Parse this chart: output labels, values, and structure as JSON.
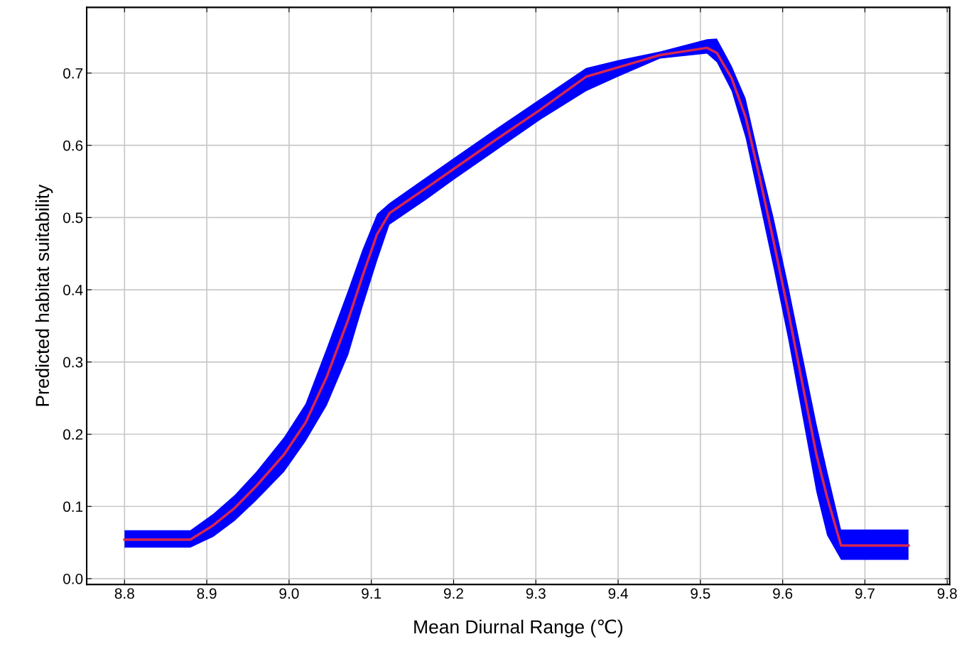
{
  "chart_data": {
    "type": "line",
    "xlabel": "Mean Diurnal Range (℃)",
    "ylabel": "Predicted habitat suitability",
    "xlim": [
      8.754,
      9.803
    ],
    "ylim": [
      -0.008,
      0.791
    ],
    "xticks": [
      8.8,
      8.9,
      {
        "value": 9.0,
        "label": "9.0"
      },
      9.1,
      9.2,
      9.3,
      9.4,
      9.5,
      9.6,
      9.7,
      9.8
    ],
    "yticks": [
      {
        "value": 0.0,
        "label": "0.0"
      },
      0.1,
      0.2,
      0.3,
      0.4,
      0.5,
      0.6,
      0.7
    ],
    "grid": true,
    "marker": "none",
    "line_style": "solid",
    "series": [
      {
        "color": "#0000ff",
        "x": [
          8.8,
          8.88,
          8.908,
          8.934,
          8.96,
          8.994,
          9.02,
          9.046,
          9.072,
          9.089,
          9.107,
          9.122,
          9.167,
          9.201,
          9.253,
          9.305,
          9.361,
          9.4,
          9.451,
          9.508,
          9.52,
          9.538,
          9.555,
          9.572,
          9.589,
          9.607,
          9.624,
          9.641,
          9.654,
          9.671,
          9.753
        ],
        "values": [
          null,
          null,
          null,
          null,
          null,
          null,
          null,
          null,
          null,
          null,
          null,
          null,
          null,
          null,
          null,
          null,
          null,
          null,
          null,
          null,
          null,
          null,
          null,
          null,
          null,
          null,
          null,
          null,
          null,
          null,
          null
        ],
        "lower": [
          0.043,
          0.043,
          0.058,
          0.08,
          0.108,
          0.148,
          0.19,
          0.24,
          0.31,
          0.375,
          0.44,
          0.49,
          0.525,
          0.553,
          0.594,
          0.635,
          0.675,
          0.695,
          0.72,
          0.727,
          0.715,
          0.675,
          0.61,
          0.52,
          0.43,
          0.33,
          0.225,
          0.12,
          0.06,
          0.026,
          0.026
        ],
        "upper": [
          0.067,
          0.067,
          0.09,
          0.116,
          0.148,
          0.196,
          0.242,
          0.32,
          0.4,
          0.455,
          0.505,
          0.52,
          0.556,
          0.583,
          0.624,
          0.664,
          0.707,
          0.718,
          0.73,
          0.747,
          0.748,
          0.71,
          0.665,
          0.58,
          0.5,
          0.405,
          0.31,
          0.215,
          0.15,
          0.068,
          0.068
        ]
      },
      {
        "color": "#d8274f",
        "x": [
          8.8,
          8.88,
          8.908,
          8.934,
          8.96,
          8.994,
          9.02,
          9.046,
          9.072,
          9.089,
          9.107,
          9.122,
          9.167,
          9.201,
          9.253,
          9.305,
          9.361,
          9.4,
          9.451,
          9.508,
          9.52,
          9.538,
          9.555,
          9.572,
          9.589,
          9.607,
          9.624,
          9.641,
          9.654,
          9.671,
          9.753
        ],
        "values": [
          0.054,
          0.054,
          0.074,
          0.098,
          0.128,
          0.172,
          0.216,
          0.28,
          0.359,
          0.418,
          0.477,
          0.506,
          0.541,
          0.568,
          0.609,
          0.649,
          0.695,
          0.708,
          0.725,
          0.735,
          0.728,
          0.693,
          0.639,
          0.556,
          0.467,
          0.369,
          0.27,
          0.172,
          0.113,
          0.046,
          0.046
        ]
      }
    ]
  }
}
